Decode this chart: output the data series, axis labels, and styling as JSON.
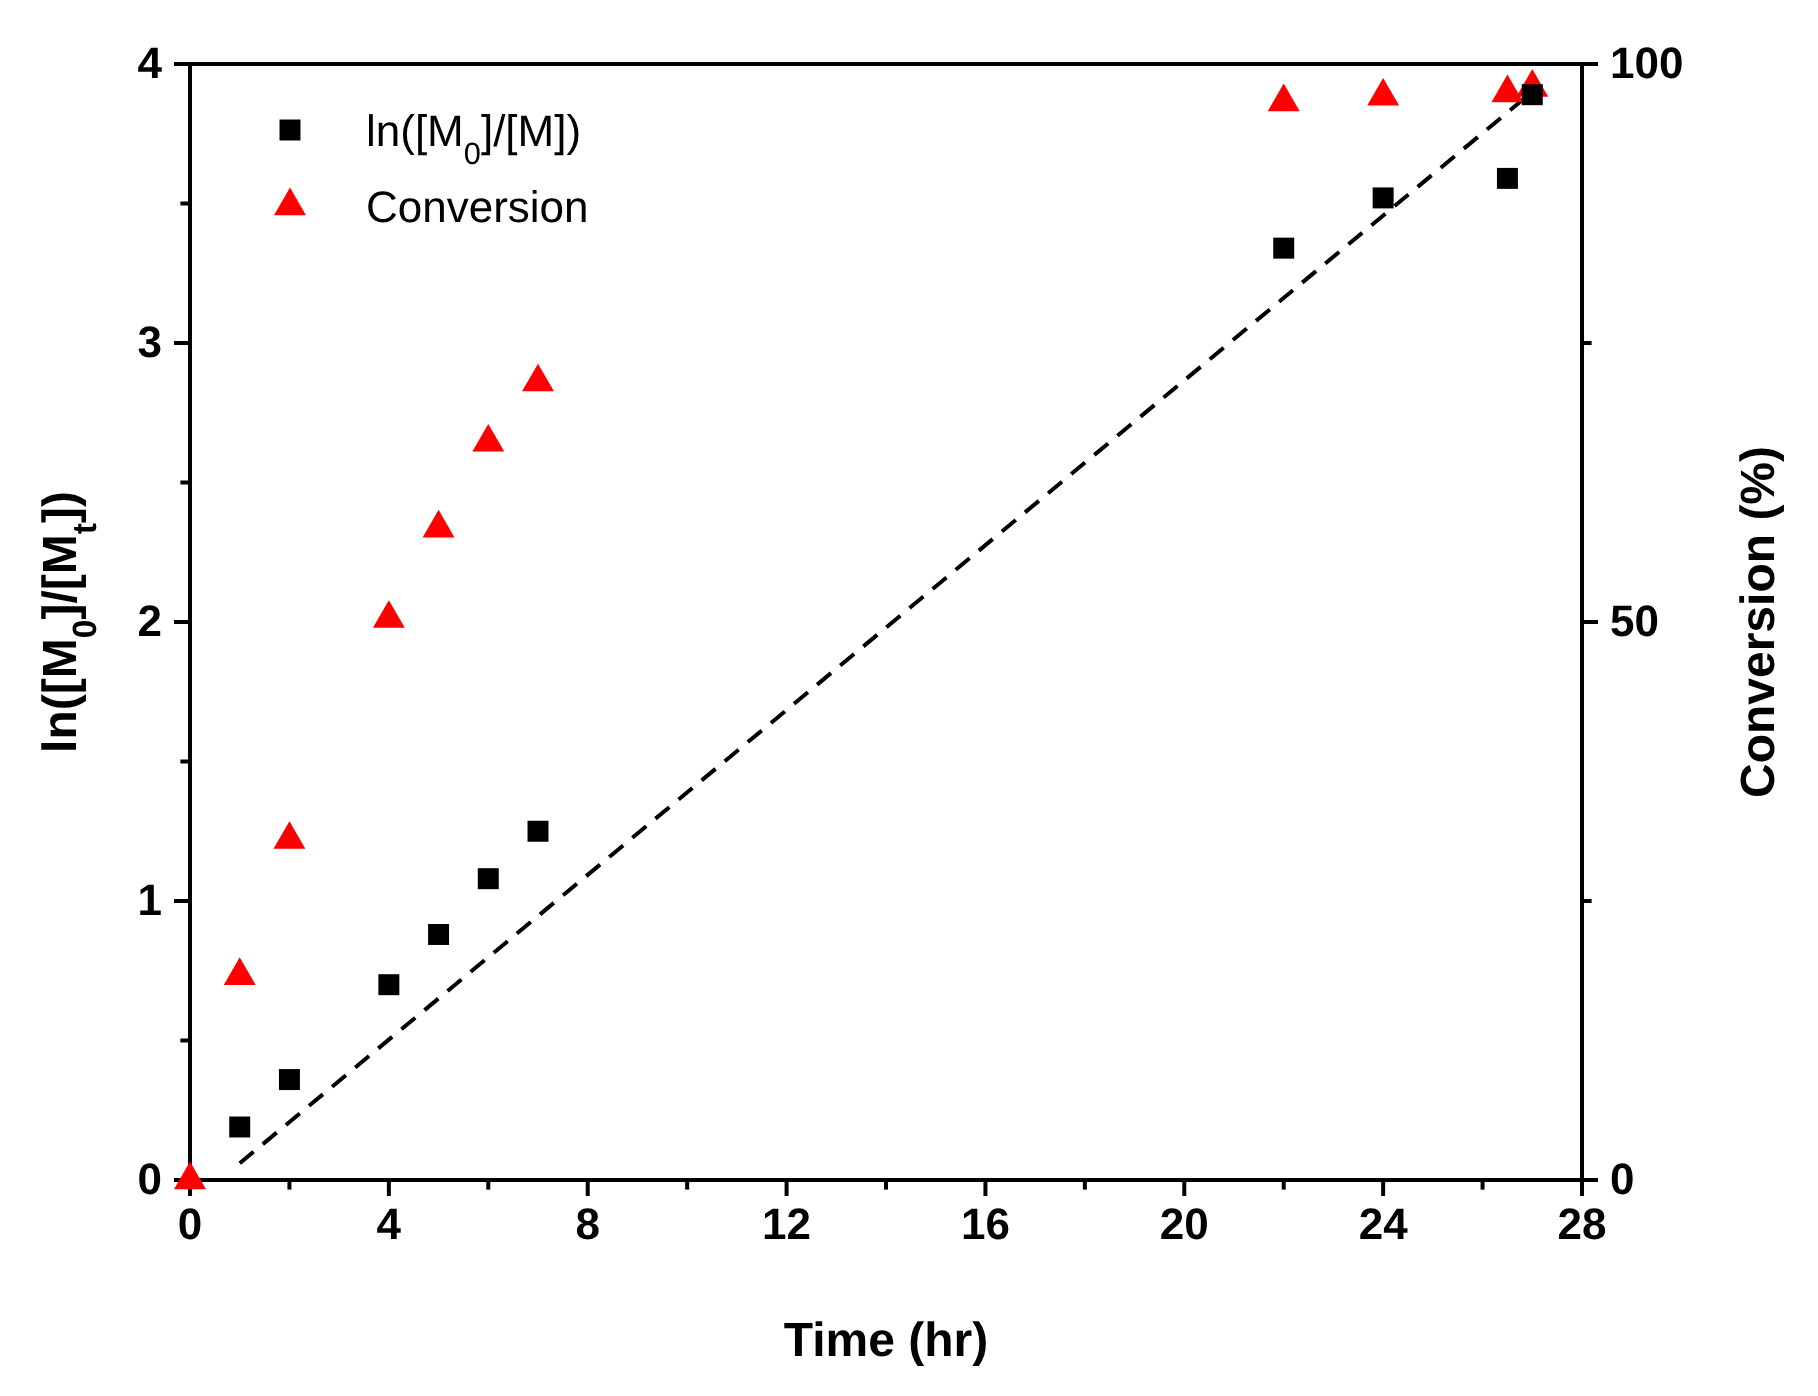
{
  "chart_data": {
    "type": "scatter",
    "xlabel": "Time (hr)",
    "ylabel": "ln([M$_{0}$]/[M$_{t}$])",
    "y2label": "Conversion (%)",
    "xlim": [
      0,
      28
    ],
    "xticks": [
      0,
      {
        "value": 2,
        "label": null
      },
      4,
      {
        "value": 6,
        "label": null
      },
      8,
      {
        "value": 10,
        "label": null
      },
      12,
      {
        "value": 14,
        "label": null
      },
      16,
      {
        "value": 18,
        "label": null
      },
      20,
      {
        "value": 22,
        "label": null
      },
      24,
      {
        "value": 26,
        "label": null
      },
      28
    ],
    "ylim": [
      0,
      4
    ],
    "yticks": [
      0,
      {
        "value": 0.5,
        "label": null
      },
      1,
      {
        "value": 1.5,
        "label": null
      },
      2,
      {
        "value": 2.5,
        "label": null
      },
      3,
      {
        "value": 3.5,
        "label": null
      },
      4
    ],
    "y2lim": [
      0,
      100
    ],
    "y2ticks": [
      0,
      {
        "value": 25,
        "label": null
      },
      50,
      {
        "value": 75,
        "label": null
      },
      100
    ],
    "grid": false,
    "legend": "top left",
    "series": [
      {
        "name": "ln([M$_{0}$]/[M])",
        "marker": "square",
        "color": "#000000",
        "x": [
          1,
          2,
          4,
          5,
          6,
          7,
          22,
          24,
          26.5,
          27
        ],
        "values": [
          0.19,
          0.36,
          0.7,
          0.88,
          1.08,
          1.25,
          3.34,
          3.52,
          3.59,
          3.89
        ]
      },
      {
        "name": "Conversion",
        "marker": "triangle",
        "axis": "y2",
        "color": "#ff0000",
        "x": [
          0,
          1,
          2,
          4,
          5,
          6,
          7,
          22,
          24,
          26.5,
          27
        ],
        "values": [
          0,
          18.3,
          30.5,
          50.3,
          58.4,
          66.1,
          71.5,
          96.6,
          97.1,
          97.4,
          97.9
        ]
      },
      {
        "type": "line",
        "line_style": "dashed",
        "marker": "none",
        "color": "#000000",
        "x": [
          1,
          27
        ],
        "values": [
          0.06,
          3.9
        ]
      }
    ]
  }
}
